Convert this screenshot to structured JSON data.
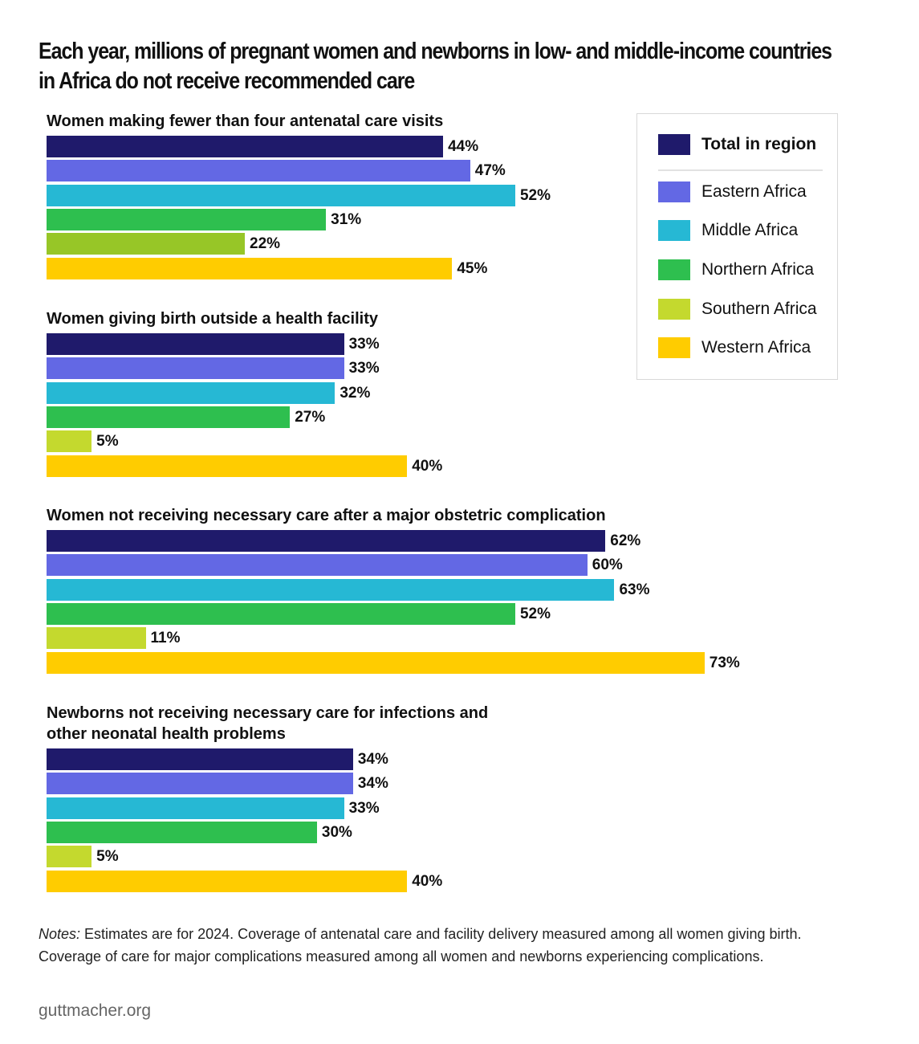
{
  "chart_data": {
    "type": "bar",
    "orientation": "horizontal",
    "title": "Each year, millions of pregnant women and newborns in low- and middle-income countries in Africa do not receive recommended care",
    "title_lines": [
      "Each year, millions of pregnant women and newborns in low- and middle-income countries",
      "in Africa do not receive recommended care"
    ],
    "unit": "%",
    "xlim": [
      0,
      100
    ],
    "grid": false,
    "legend_placement": "top-right",
    "series": [
      {
        "name": "Total in region",
        "color": "#1f1a6b"
      },
      {
        "name": "Eastern Africa",
        "color": "#6368e4"
      },
      {
        "name": "Middle Africa",
        "color": "#26b8d4"
      },
      {
        "name": "Northern Africa",
        "color": "#2ebf4f"
      },
      {
        "name": "Southern Africa",
        "color": "#c4d92e"
      },
      {
        "name": "Western Africa",
        "color": "#ffcc00"
      }
    ],
    "groups": [
      {
        "title_lines": [
          "Women making fewer than four antenatal care visits"
        ],
        "values": [
          44,
          47,
          52,
          31,
          22,
          45
        ],
        "southern_color": "#97c627"
      },
      {
        "title_lines": [
          "Women giving birth outside a health facility"
        ],
        "values": [
          33,
          33,
          32,
          27,
          5,
          40
        ]
      },
      {
        "title_lines": [
          "Women not receiving necessary care after a major obstetric complication"
        ],
        "values": [
          62,
          60,
          63,
          52,
          11,
          73
        ]
      },
      {
        "title_lines": [
          "Newborns not receiving necessary care for infections and",
          "other neonatal health problems"
        ],
        "values": [
          34,
          34,
          33,
          30,
          5,
          40
        ]
      }
    ]
  },
  "notes": {
    "label": "Notes:",
    "text": " Estimates are for 2024. Coverage of antenatal care and facility delivery measured among all women giving birth.",
    "line2": "Coverage of care for major complications measured among all women and newborns experiencing complications."
  },
  "source": "guttmacher.org"
}
